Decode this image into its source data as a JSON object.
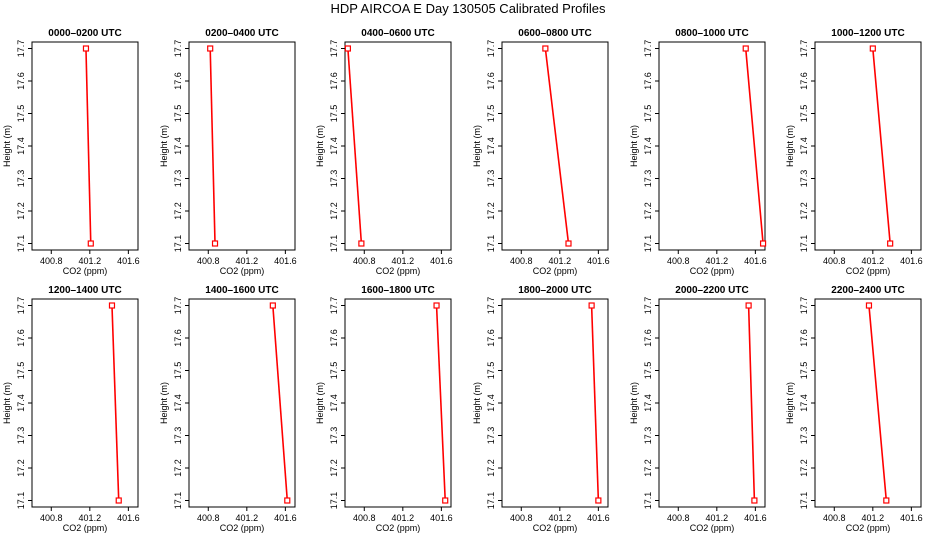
{
  "title": "HDP AIRCOA E  Day 130505  Calibrated Profiles",
  "colors": {
    "line": "#ff0000",
    "marker": "#ff0000",
    "axis": "#000000"
  },
  "chart_data": [
    {
      "type": "line",
      "title": "0000–0200 UTC",
      "xlabel": "CO2 (ppm)",
      "ylabel": "Height (m)",
      "xlim": [
        400.6,
        401.7
      ],
      "ylim": [
        17.08,
        17.72
      ],
      "xticks": [
        "400.8",
        "401.2",
        "401.6"
      ],
      "yticks": [
        "17.1",
        "17.2",
        "17.3",
        "17.4",
        "17.5",
        "17.6",
        "17.7"
      ],
      "x": [
        401.16,
        401.21
      ],
      "y": [
        17.7,
        17.1
      ],
      "markers": true
    },
    {
      "type": "line",
      "title": "0200–0400 UTC",
      "xlabel": "CO2 (ppm)",
      "ylabel": "Height (m)",
      "xlim": [
        400.6,
        401.7
      ],
      "ylim": [
        17.08,
        17.72
      ],
      "xticks": [
        "400.8",
        "401.2",
        "401.6"
      ],
      "yticks": [
        "17.1",
        "17.2",
        "17.3",
        "17.4",
        "17.5",
        "17.6",
        "17.7"
      ],
      "x": [
        400.82,
        400.87
      ],
      "y": [
        17.7,
        17.1
      ],
      "markers": true
    },
    {
      "type": "line",
      "title": "0400–0600 UTC",
      "xlabel": "CO2 (ppm)",
      "ylabel": "Height (m)",
      "xlim": [
        400.6,
        401.7
      ],
      "ylim": [
        17.08,
        17.72
      ],
      "xticks": [
        "400.8",
        "401.2",
        "401.6"
      ],
      "yticks": [
        "17.1",
        "17.2",
        "17.3",
        "17.4",
        "17.5",
        "17.6",
        "17.7"
      ],
      "x": [
        400.63,
        400.77
      ],
      "y": [
        17.7,
        17.1
      ],
      "markers": true
    },
    {
      "type": "line",
      "title": "0600–0800 UTC",
      "xlabel": "CO2 (ppm)",
      "ylabel": "Height (m)",
      "xlim": [
        400.6,
        401.7
      ],
      "ylim": [
        17.08,
        17.72
      ],
      "xticks": [
        "400.8",
        "401.2",
        "401.6"
      ],
      "yticks": [
        "17.1",
        "17.2",
        "17.3",
        "17.4",
        "17.5",
        "17.6",
        "17.7"
      ],
      "x": [
        401.05,
        401.29
      ],
      "y": [
        17.7,
        17.1
      ],
      "markers": true
    },
    {
      "type": "line",
      "title": "0800–1000 UTC",
      "xlabel": "CO2 (ppm)",
      "ylabel": "Height (m)",
      "xlim": [
        400.6,
        401.7
      ],
      "ylim": [
        17.08,
        17.72
      ],
      "xticks": [
        "400.8",
        "401.2",
        "401.6"
      ],
      "yticks": [
        "17.1",
        "17.2",
        "17.3",
        "17.4",
        "17.5",
        "17.6",
        "17.7"
      ],
      "x": [
        401.5,
        401.68
      ],
      "y": [
        17.7,
        17.1
      ],
      "markers": true
    },
    {
      "type": "line",
      "title": "1000–1200 UTC",
      "xlabel": "CO2 (ppm)",
      "ylabel": "Height (m)",
      "xlim": [
        400.6,
        401.7
      ],
      "ylim": [
        17.08,
        17.72
      ],
      "xticks": [
        "400.8",
        "401.2",
        "401.6"
      ],
      "yticks": [
        "17.1",
        "17.2",
        "17.3",
        "17.4",
        "17.5",
        "17.6",
        "17.7"
      ],
      "x": [
        401.2,
        401.38
      ],
      "y": [
        17.7,
        17.1
      ],
      "markers": true
    },
    {
      "type": "line",
      "title": "1200–1400 UTC",
      "xlabel": "CO2 (ppm)",
      "ylabel": "Height (m)",
      "xlim": [
        400.6,
        401.7
      ],
      "ylim": [
        17.08,
        17.72
      ],
      "xticks": [
        "400.8",
        "401.2",
        "401.6"
      ],
      "yticks": [
        "17.1",
        "17.2",
        "17.3",
        "17.4",
        "17.5",
        "17.6",
        "17.7"
      ],
      "x": [
        401.43,
        401.5
      ],
      "y": [
        17.7,
        17.1
      ],
      "markers": true
    },
    {
      "type": "line",
      "title": "1400–1600 UTC",
      "xlabel": "CO2 (ppm)",
      "ylabel": "Height (m)",
      "xlim": [
        400.6,
        401.7
      ],
      "ylim": [
        17.08,
        17.72
      ],
      "xticks": [
        "400.8",
        "401.2",
        "401.6"
      ],
      "yticks": [
        "17.1",
        "17.2",
        "17.3",
        "17.4",
        "17.5",
        "17.6",
        "17.7"
      ],
      "x": [
        401.47,
        401.62
      ],
      "y": [
        17.7,
        17.1
      ],
      "markers": true
    },
    {
      "type": "line",
      "title": "1600–1800 UTC",
      "xlabel": "CO2 (ppm)",
      "ylabel": "Height (m)",
      "xlim": [
        400.6,
        401.7
      ],
      "ylim": [
        17.08,
        17.72
      ],
      "xticks": [
        "400.8",
        "401.2",
        "401.6"
      ],
      "yticks": [
        "17.1",
        "17.2",
        "17.3",
        "17.4",
        "17.5",
        "17.6",
        "17.7"
      ],
      "x": [
        401.55,
        401.64
      ],
      "y": [
        17.7,
        17.1
      ],
      "markers": true
    },
    {
      "type": "line",
      "title": "1800–2000 UTC",
      "xlabel": "CO2 (ppm)",
      "ylabel": "Height (m)",
      "xlim": [
        400.6,
        401.7
      ],
      "ylim": [
        17.08,
        17.72
      ],
      "xticks": [
        "400.8",
        "401.2",
        "401.6"
      ],
      "yticks": [
        "17.1",
        "17.2",
        "17.3",
        "17.4",
        "17.5",
        "17.6",
        "17.7"
      ],
      "x": [
        401.53,
        401.6
      ],
      "y": [
        17.7,
        17.1
      ],
      "markers": true
    },
    {
      "type": "line",
      "title": "2000–2200 UTC",
      "xlabel": "CO2 (ppm)",
      "ylabel": "Height (m)",
      "xlim": [
        400.6,
        401.7
      ],
      "ylim": [
        17.08,
        17.72
      ],
      "xticks": [
        "400.8",
        "401.2",
        "401.6"
      ],
      "yticks": [
        "17.1",
        "17.2",
        "17.3",
        "17.4",
        "17.5",
        "17.6",
        "17.7"
      ],
      "x": [
        401.53,
        401.59
      ],
      "y": [
        17.7,
        17.1
      ],
      "markers": true
    },
    {
      "type": "line",
      "title": "2200–2400 UTC",
      "xlabel": "CO2 (ppm)",
      "ylabel": "Height (m)",
      "xlim": [
        400.6,
        401.7
      ],
      "ylim": [
        17.08,
        17.72
      ],
      "xticks": [
        "400.8",
        "401.2",
        "401.6"
      ],
      "yticks": [
        "17.1",
        "17.2",
        "17.3",
        "17.4",
        "17.5",
        "17.6",
        "17.7"
      ],
      "x": [
        401.16,
        401.34
      ],
      "y": [
        17.7,
        17.1
      ],
      "markers": true
    }
  ]
}
